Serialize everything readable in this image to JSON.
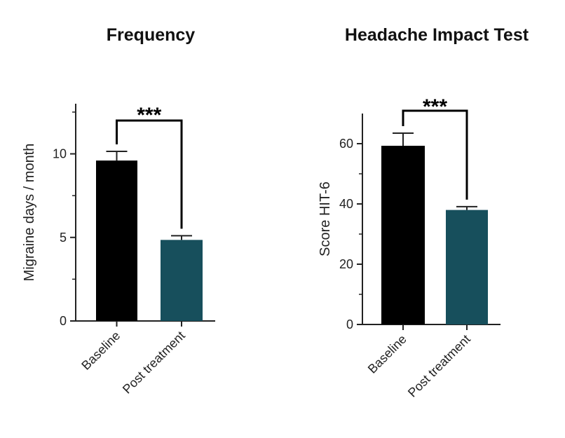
{
  "chart_data": [
    {
      "type": "bar",
      "title": "Frequency",
      "xlabel": "",
      "ylabel": "Migraine days / month",
      "categories": [
        "Baseline",
        "Post treatment"
      ],
      "values": [
        9.6,
        4.85
      ],
      "errors": [
        0.55,
        0.25
      ],
      "ylim": [
        0,
        13
      ],
      "yticks": [
        0,
        5,
        10
      ],
      "significance": {
        "from": 0,
        "to": 1,
        "label": "***"
      },
      "colors": [
        "#000000",
        "#174f5c"
      ],
      "grid": false
    },
    {
      "type": "bar",
      "title": "Headache Impact Test",
      "xlabel": "",
      "ylabel": "Score HIT-6",
      "categories": [
        "Baseline",
        "Post treatment"
      ],
      "values": [
        59.3,
        38
      ],
      "errors": [
        4.2,
        1.1
      ],
      "ylim": [
        0,
        70
      ],
      "yticks": [
        0,
        20,
        40,
        60
      ],
      "significance": {
        "from": 0,
        "to": 1,
        "label": "***"
      },
      "colors": [
        "#000000",
        "#174f5c"
      ],
      "grid": false
    }
  ]
}
